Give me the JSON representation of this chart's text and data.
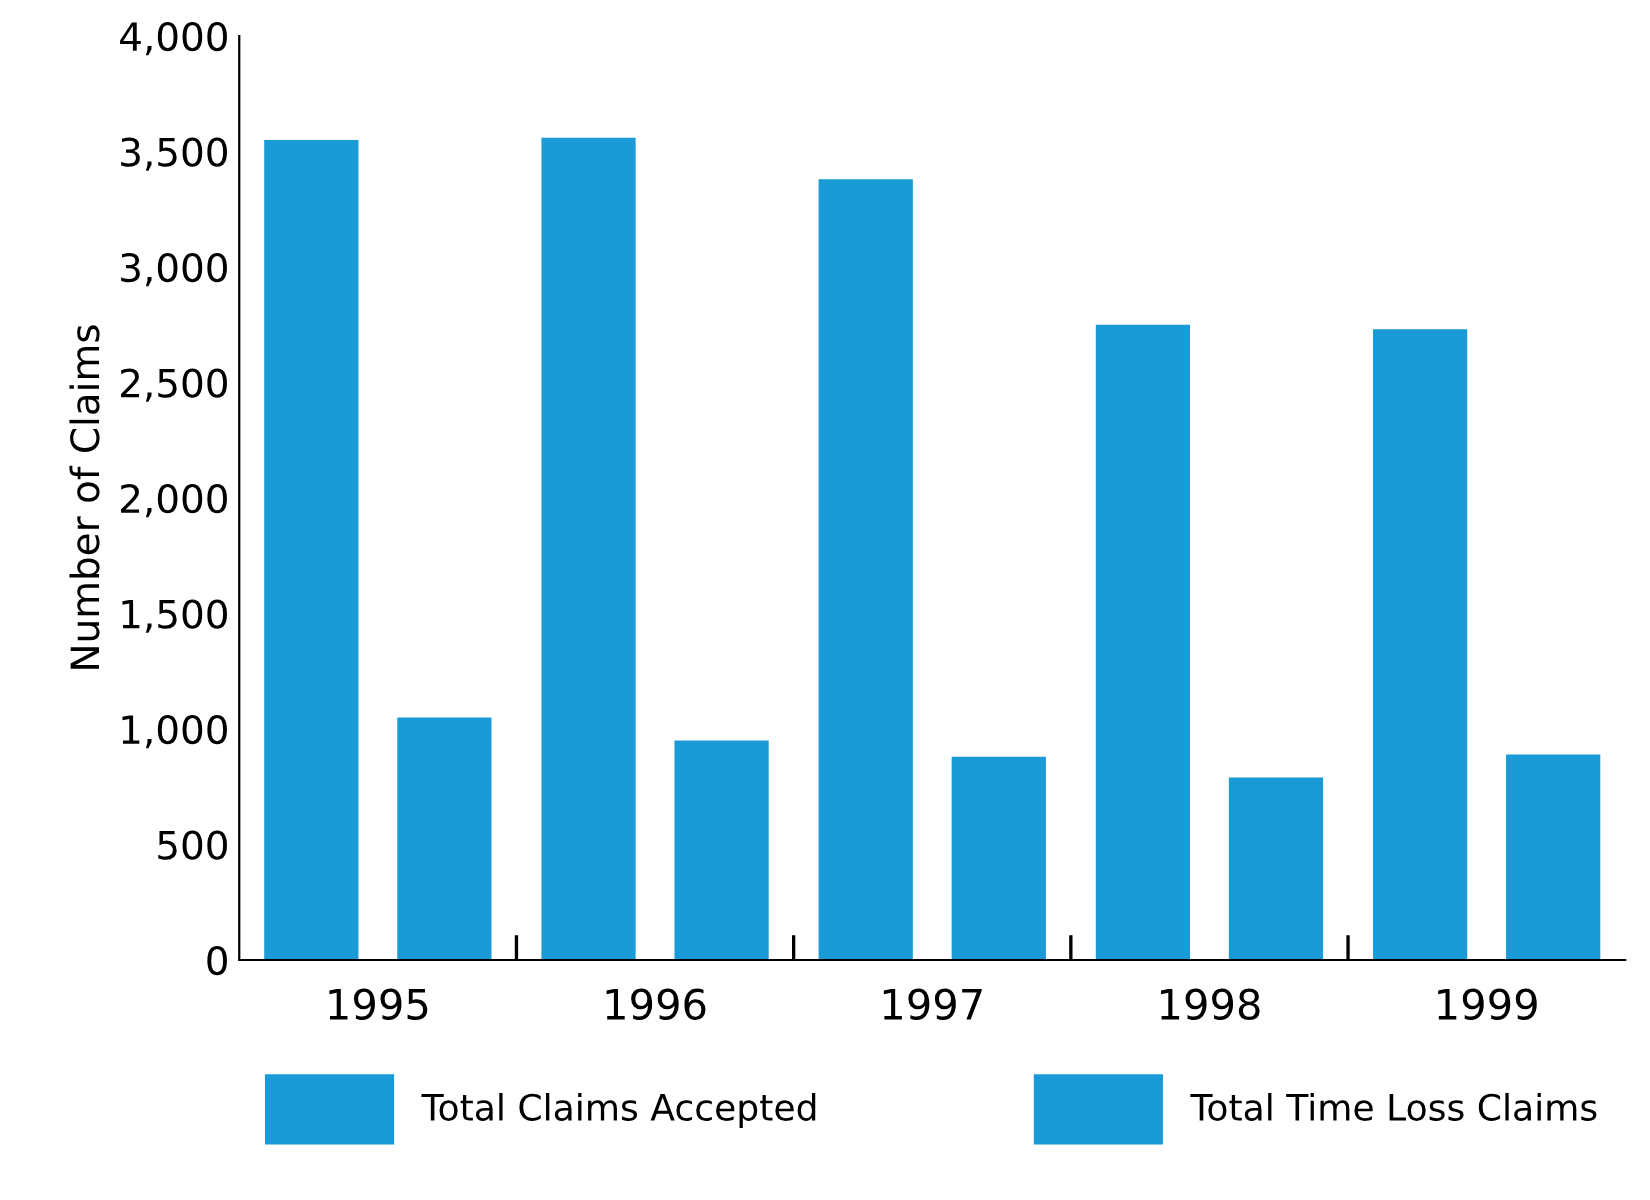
{
  "chart_data": {
    "type": "bar",
    "ylabel": "Number of Claims",
    "categories": [
      "1995",
      "1996",
      "1997",
      "1998",
      "1999"
    ],
    "series": [
      {
        "name": "Total Claims Accepted",
        "color": "#1a9ad6",
        "values": [
          3550,
          3560,
          3380,
          2750,
          2730
        ]
      },
      {
        "name": "Total Time Loss Claims",
        "color": "#1a9ad6",
        "values": [
          1050,
          950,
          880,
          790,
          890
        ]
      }
    ],
    "ylim": [
      0,
      4000
    ],
    "yticks": [
      0,
      {
        "value": 500,
        "label": "500"
      },
      {
        "value": 1000,
        "label": "1,000"
      },
      {
        "value": 1500,
        "label": "1,500"
      },
      {
        "value": 2000,
        "label": "2,000"
      },
      {
        "value": 2500,
        "label": "2,500"
      },
      {
        "value": 3000,
        "label": "3,000"
      },
      {
        "value": 3500,
        "label": "3,500"
      },
      {
        "value": 4000,
        "label": "4,000"
      }
    ],
    "grid": false,
    "legend": "bottom"
  }
}
